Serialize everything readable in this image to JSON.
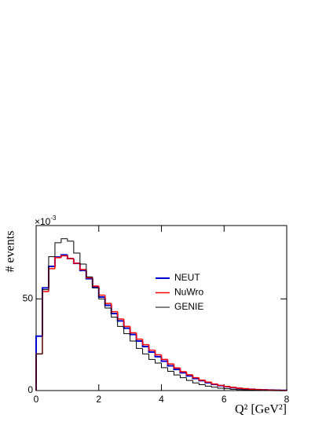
{
  "chart_data": {
    "type": "histogram",
    "x_label": "Q² [GeV²]",
    "y_label": "# events",
    "y_scale_base": "×10",
    "y_scale_exponent": "-3",
    "bins": [
      0,
      0.2,
      0.4,
      0.6,
      0.8,
      1,
      1.2,
      1.4,
      1.6,
      1.8,
      2,
      2.2,
      2.4,
      2.6,
      2.8,
      3,
      3.2,
      3.4,
      3.6,
      3.8,
      4,
      4.2,
      4.4,
      4.6,
      4.8,
      5,
      5.2,
      5.4,
      5.6,
      5.8,
      6,
      6.2,
      6.4,
      6.6,
      6.8,
      7,
      7.2,
      7.4,
      7.6,
      7.8,
      8
    ],
    "series": [
      {
        "name": "NEUT",
        "color": "#0000cc",
        "values": [
          29.7,
          56,
          67.7,
          72.8,
          74,
          72,
          69.4,
          65.5,
          61,
          56.5,
          51,
          46.5,
          42,
          38,
          34,
          30.6,
          27,
          24,
          21,
          18.5,
          16,
          13.5,
          11.5,
          9.7,
          8,
          6.6,
          5.4,
          4.3,
          3.4,
          2.7,
          2.1,
          1.6,
          1.2,
          0.9,
          0.7,
          0.5,
          0.35,
          0.25,
          0.18,
          0.12
        ]
      },
      {
        "name": "NuWro",
        "color": "#ff0000",
        "values": [
          20,
          54,
          66.5,
          72.5,
          73.5,
          72,
          69.5,
          66,
          61.5,
          57,
          52,
          47.5,
          43,
          39,
          35,
          31.5,
          28,
          25,
          22,
          19.5,
          17,
          14.5,
          12.3,
          10.3,
          8.6,
          7,
          5.7,
          4.6,
          3.6,
          2.8,
          2.2,
          1.7,
          1.3,
          1,
          0.7,
          0.5,
          0.37,
          0.26,
          0.18,
          0.12
        ]
      },
      {
        "name": "GENIE",
        "color": "#000000",
        "values": [
          20,
          55,
          73,
          80.6,
          82.8,
          81.5,
          75,
          69,
          62,
          56,
          50,
          45,
          40,
          35,
          31,
          27,
          23,
          20,
          17,
          15,
          12.5,
          10.5,
          8.5,
          7,
          5.5,
          4.2,
          3.2,
          2.4,
          1.8,
          1.3,
          1,
          0.7,
          0.5,
          0.35,
          0.25,
          0.18,
          0.12,
          0.08,
          0.05,
          0.03
        ]
      }
    ],
    "xlim": [
      0,
      8
    ],
    "xticks": [
      0,
      2,
      4,
      6,
      8
    ],
    "ylim": [
      0,
      90
    ],
    "yticks": [
      0,
      50
    ],
    "legend": "center"
  }
}
